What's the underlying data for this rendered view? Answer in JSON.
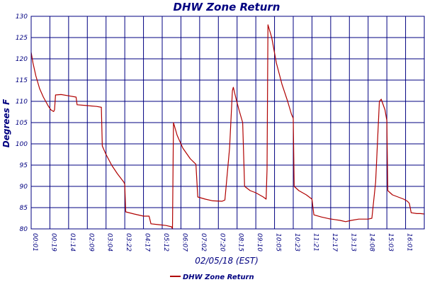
{
  "chart_data": {
    "type": "line",
    "title": "DHW Zone Return",
    "xlabel": "02/05/18 (EST)",
    "ylabel": "Degrees F",
    "ylim": [
      80,
      130
    ],
    "yticks": [
      80,
      85,
      90,
      95,
      100,
      105,
      110,
      115,
      120,
      125,
      130
    ],
    "x_tick_labels": [
      "00:01",
      "00:19",
      "01:14",
      "02:09",
      "03:04",
      "03:22",
      "04:17",
      "05:12",
      "06:07",
      "07:02",
      "07:20",
      "08:15",
      "09:10",
      "10:05",
      "10:23",
      "11:21",
      "12:17",
      "13:13",
      "14:08",
      "15:03",
      "16:01",
      "16:10"
    ],
    "grid": true,
    "legend_position": "bottom-center",
    "colors": {
      "series": "#b00000",
      "grid": "#000080",
      "text": "#000080"
    },
    "series": [
      {
        "name": "DHW Zone Return",
        "points": [
          [
            0.0,
            121.5
          ],
          [
            0.1,
            119.0
          ],
          [
            0.25,
            116.0
          ],
          [
            0.45,
            113.0
          ],
          [
            0.65,
            111.0
          ],
          [
            0.9,
            109.0
          ],
          [
            1.05,
            108.0
          ],
          [
            1.2,
            107.6
          ],
          [
            1.25,
            108.0
          ],
          [
            1.3,
            111.5
          ],
          [
            1.6,
            111.6
          ],
          [
            2.0,
            111.3
          ],
          [
            2.4,
            111.0
          ],
          [
            2.45,
            109.2
          ],
          [
            3.0,
            109.0
          ],
          [
            3.5,
            108.8
          ],
          [
            3.75,
            108.6
          ],
          [
            3.8,
            99.5
          ],
          [
            4.0,
            97.5
          ],
          [
            4.3,
            95.0
          ],
          [
            4.6,
            93.0
          ],
          [
            4.95,
            91.0
          ],
          [
            5.0,
            90.5
          ],
          [
            5.05,
            84.0
          ],
          [
            5.5,
            83.5
          ],
          [
            6.0,
            83.0
          ],
          [
            6.3,
            83.0
          ],
          [
            6.4,
            81.2
          ],
          [
            6.8,
            81.0
          ],
          [
            7.2,
            80.8
          ],
          [
            7.5,
            80.5
          ],
          [
            7.55,
            80.0
          ],
          [
            7.6,
            105.0
          ],
          [
            7.8,
            102.0
          ],
          [
            8.1,
            99.0
          ],
          [
            8.5,
            96.5
          ],
          [
            8.8,
            95.2
          ],
          [
            8.9,
            87.5
          ],
          [
            9.3,
            87.0
          ],
          [
            9.7,
            86.6
          ],
          [
            10.2,
            86.5
          ],
          [
            10.35,
            86.8
          ],
          [
            10.6,
            99.0
          ],
          [
            10.75,
            112.5
          ],
          [
            10.8,
            113.3
          ],
          [
            10.95,
            110.5
          ],
          [
            11.1,
            108.0
          ],
          [
            11.3,
            105.0
          ],
          [
            11.4,
            90.0
          ],
          [
            11.7,
            89.0
          ],
          [
            12.0,
            88.5
          ],
          [
            12.4,
            87.5
          ],
          [
            12.55,
            87.0
          ],
          [
            12.6,
            94.0
          ],
          [
            12.65,
            128.0
          ],
          [
            12.85,
            125.0
          ],
          [
            13.1,
            119.0
          ],
          [
            13.4,
            114.0
          ],
          [
            13.7,
            110.0
          ],
          [
            13.9,
            107.0
          ],
          [
            14.0,
            106.0
          ],
          [
            14.05,
            90.0
          ],
          [
            14.3,
            89.0
          ],
          [
            14.7,
            88.0
          ],
          [
            15.0,
            87.0
          ],
          [
            15.1,
            83.3
          ],
          [
            15.5,
            82.8
          ],
          [
            15.9,
            82.4
          ],
          [
            16.2,
            82.2
          ],
          [
            16.5,
            82.0
          ],
          [
            16.8,
            81.7
          ],
          [
            17.1,
            82.0
          ],
          [
            17.5,
            82.3
          ],
          [
            18.0,
            82.3
          ],
          [
            18.2,
            82.5
          ],
          [
            18.4,
            91.0
          ],
          [
            18.6,
            110.0
          ],
          [
            18.7,
            110.5
          ],
          [
            18.9,
            108.0
          ],
          [
            19.0,
            105.5
          ],
          [
            19.05,
            89.0
          ],
          [
            19.3,
            88.0
          ],
          [
            19.6,
            87.5
          ],
          [
            19.9,
            87.0
          ],
          [
            20.1,
            86.5
          ],
          [
            20.2,
            86.0
          ],
          [
            20.3,
            83.8
          ],
          [
            20.6,
            83.6
          ],
          [
            20.8,
            83.6
          ],
          [
            21.0,
            83.5
          ]
        ]
      }
    ]
  }
}
